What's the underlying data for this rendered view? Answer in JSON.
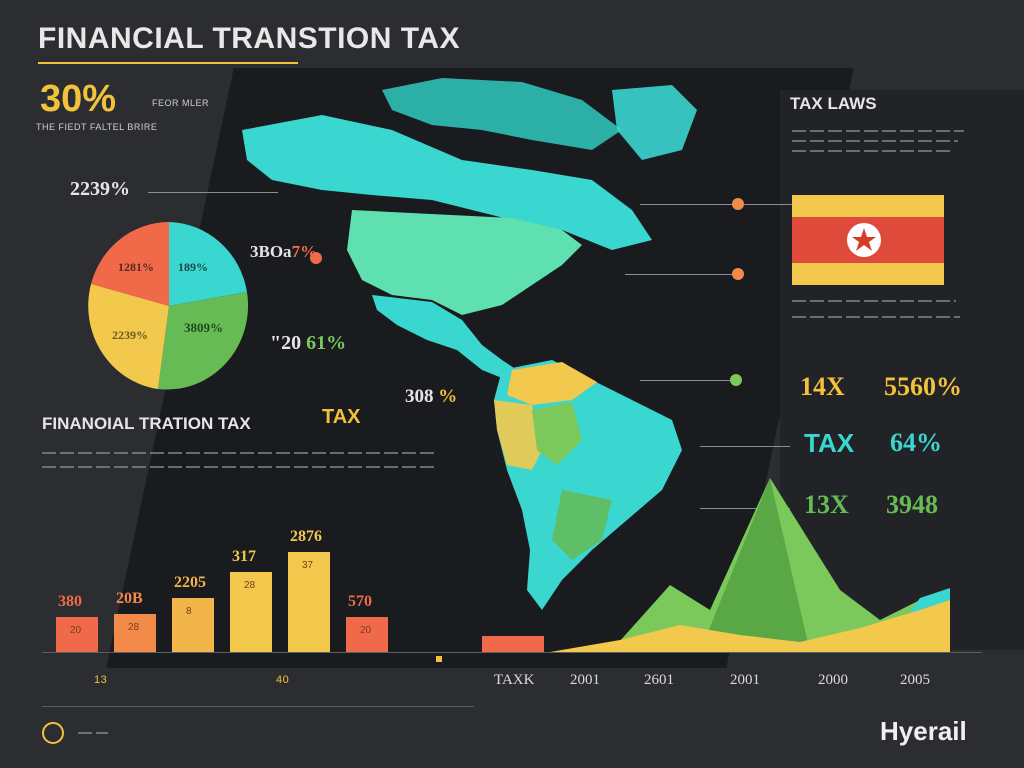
{
  "header": {
    "title": "FINANCIAL TRANSTION  TAX"
  },
  "left_top": {
    "percent": "30%",
    "caption_right": "FEOR MLER",
    "caption_below": "THE FIEDT FALTEL BRIRE"
  },
  "pie": {
    "percent_label": "2239%",
    "slice_labels": [
      "1281%",
      "189%",
      "2239%",
      "3809%"
    ],
    "colors": [
      "#f06a4a",
      "#3ad6d0",
      "#f2c94c",
      "#66bb55"
    ]
  },
  "callouts": [
    {
      "text": "3BOa",
      "accent": "7%"
    },
    {
      "text": "\"20",
      "accent": "61%"
    },
    {
      "text": "308",
      "accent": "%"
    }
  ],
  "section": {
    "title": "FINANOIAL TRATION TAX",
    "tag": "TAX"
  },
  "bars": {
    "labels": [
      "380",
      "20B",
      "2205",
      "317",
      "2876",
      "570"
    ],
    "inner_labels": [
      "20",
      "28",
      "8",
      "28",
      "37",
      "20"
    ],
    "values": [
      26,
      28,
      40,
      60,
      75,
      26
    ],
    "colors": [
      "#f06a4a",
      "#f28a4a",
      "#f2b54a",
      "#f2c94c",
      "#f2c94c",
      "#f06a4a"
    ],
    "bottom_labels": [
      "13",
      "40"
    ]
  },
  "right": {
    "tax_laws_title": "TAX LAWS",
    "rows": [
      {
        "label": "14X",
        "value": "5560%",
        "label_color": "#f2c23a",
        "value_color": "#f2c23a"
      },
      {
        "label": "TAX",
        "value": "64%",
        "label_color": "#3ad6d0",
        "value_color": "#3ad6d0"
      },
      {
        "label": "13X",
        "value": "3948",
        "label_color": "#66bb55",
        "value_color": "#66bb55"
      }
    ]
  },
  "area_chart": {
    "years": [
      "TAXK",
      "2001",
      "2601",
      "2001",
      "2000",
      "2005"
    ]
  },
  "brand": {
    "name": "Hyerail"
  }
}
